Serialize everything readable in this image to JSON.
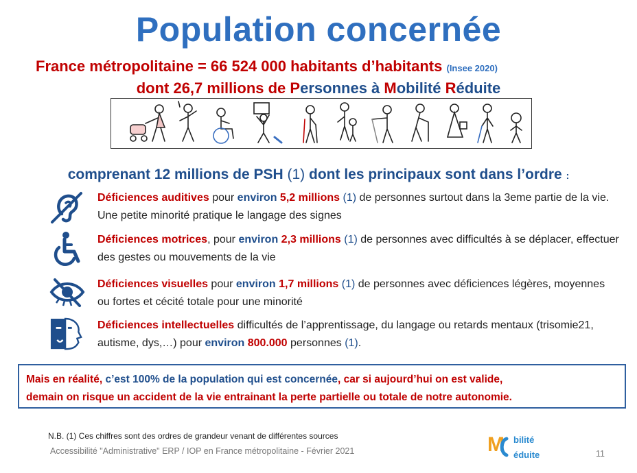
{
  "title": "Population concernée",
  "header": {
    "line1_main": "France métropolitaine = 66 524 000 habitants d’habitants",
    "line1_source": "(Insee 2020)",
    "line2_prefix": "dont 26,7 millions de ",
    "line2_p": "P",
    "line2_ersonnes": "ersonnes à ",
    "line2_m": "M",
    "line2_obilite": "obilité ",
    "line2_r": "R",
    "line2_eduite": "éduite"
  },
  "intro": {
    "main": "comprenant 12 millions de PSH ",
    "ref": "(1)",
    "rest": " dont les principaux sont dans l’ordre ",
    "colon": ":"
  },
  "items": [
    {
      "icon": "deaf-ear-icon",
      "label": "Déficiences auditives",
      "pre": " pour ",
      "environ": "environ",
      "amount": " 5,2 millions",
      "ref": " (1)",
      "rest": " de personnes surtout dans la 3eme partie de la vie. Une petite minorité pratique le langage des signes"
    },
    {
      "icon": "wheelchair-icon",
      "label": "Déficiences motrices",
      "pre": ", pour ",
      "environ": "environ",
      "amount": " 2,3 millions",
      "ref": " (1)",
      "rest": " de personnes avec difficultés à se déplacer, effectuer des gestes ou mouvements de la vie"
    },
    {
      "icon": "crossed-eye-icon",
      "label": "Déficiences visuelles",
      "pre": " pour ",
      "environ": "environ",
      "amount": " 1,7 millions",
      "ref": " (1)",
      "rest": " de personnes avec déficiences légères, moyennes ou fortes et cécité totale pour une minorité"
    },
    {
      "icon": "face-profile-icon",
      "label": "Déficiences intellectuelles",
      "pre": " difficultés de l’apprentissage, du langage ou retards mentaux (trisomie21, autisme, dys,…) pour ",
      "environ": "environ",
      "amount": " 800.000",
      "ref_pre": " personnes ",
      "ref": "(1)",
      "rest": "."
    }
  ],
  "note": {
    "a": "Mais en réalité, ",
    "b": "c’est 100% de la population qui est concernée",
    "c": ", car si aujourd’hui on est valide,",
    "d": "demain on risque un accident de la vie entrainant la perte partielle ou totale de notre autonomie."
  },
  "nb": "N.B. (1) Ces chiffres sont des ordres de grandeur venant de différentes sources",
  "footer": "Accessibilité \"Administrative\" ERP / IOP en France métropolitaine - Février 2021",
  "page_number": "11",
  "logo": {
    "m": "M",
    "bilite": "bilité",
    "eduite": "éduite"
  },
  "colors": {
    "title": "#2f6fbf",
    "red": "#c00000",
    "blue": "#1f4e8c"
  }
}
